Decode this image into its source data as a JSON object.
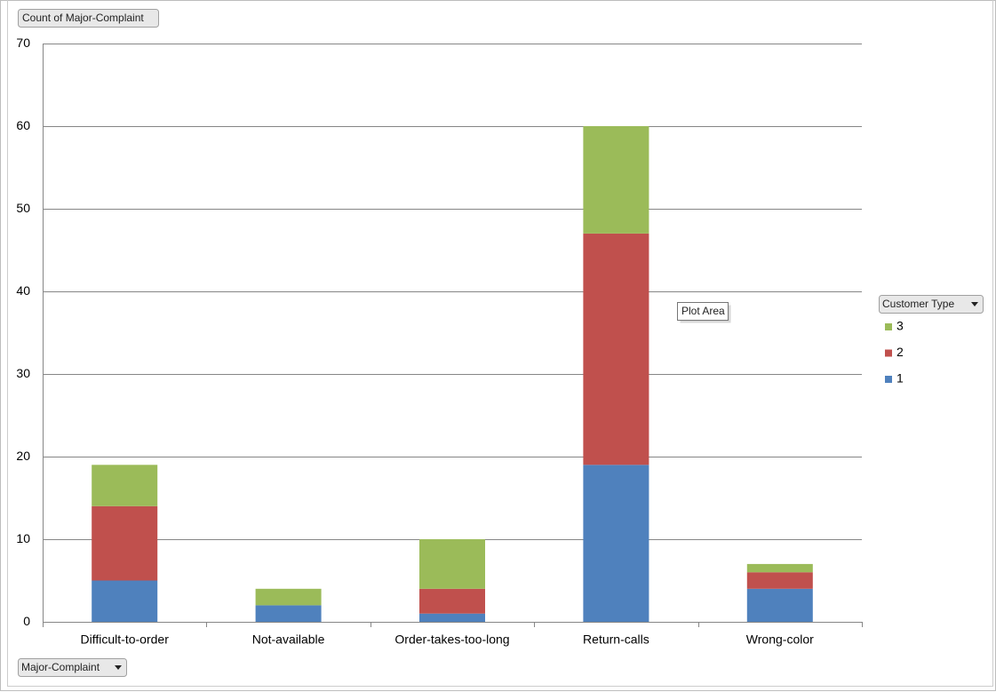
{
  "chart_data": {
    "type": "bar",
    "stacked": true,
    "value_field_button": "Count of Major-Complaint",
    "axis_field_button": "Major-Complaint",
    "legend_field_button": "Customer Type",
    "tooltip": "Plot Area",
    "categories": [
      "Difficult-to-order",
      "Not-available",
      "Order-takes-too-long",
      "Return-calls",
      "Wrong-color"
    ],
    "series": [
      {
        "name": "1",
        "color": "#4f81bd",
        "values": [
          5,
          2,
          1,
          19,
          4
        ]
      },
      {
        "name": "2",
        "color": "#c0504d",
        "values": [
          9,
          0,
          3,
          28,
          2
        ]
      },
      {
        "name": "3",
        "color": "#9bbb59",
        "values": [
          5,
          2,
          6,
          13,
          1
        ]
      }
    ],
    "ylim": [
      0,
      70
    ],
    "yticks": [
      0,
      10,
      20,
      30,
      40,
      50,
      60,
      70
    ],
    "grid": true
  }
}
